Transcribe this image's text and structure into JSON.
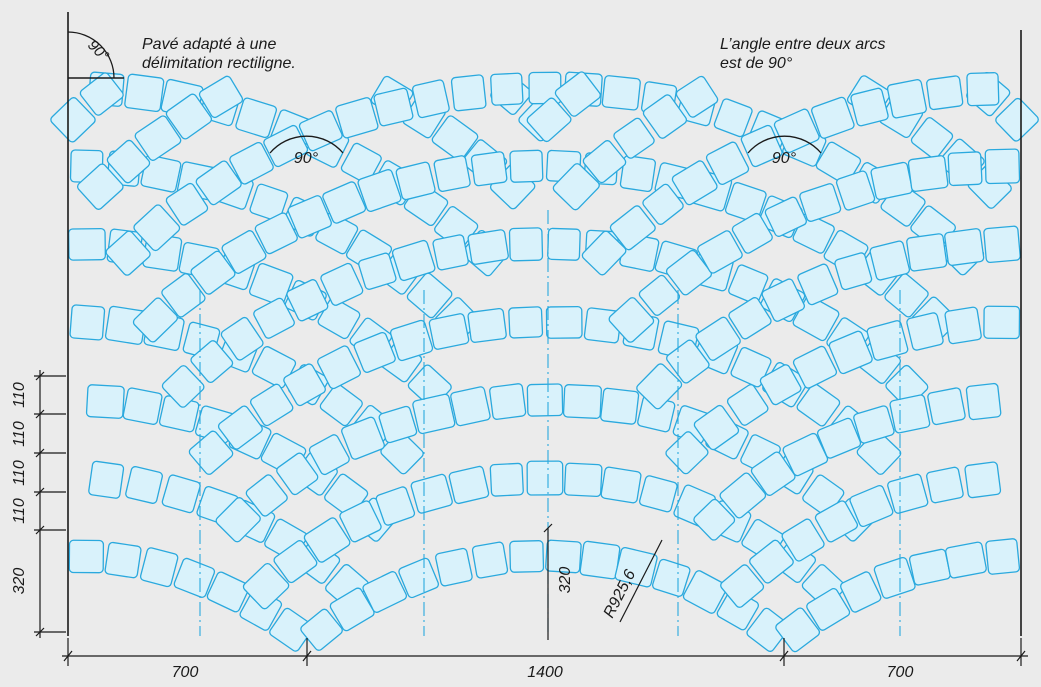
{
  "notes": {
    "left_line1": "Pavé adapté à une",
    "left_line2": "délimitation rectiligne.",
    "right_line1": "L’angle entre deux arcs",
    "right_line2": "est de 90°"
  },
  "angles": {
    "corner": "90°",
    "left_junction": "90°",
    "right_junction": "90°"
  },
  "dimensions": {
    "horizontal": [
      "700",
      "1400",
      "700"
    ],
    "vertical_rows": [
      "110",
      "110",
      "110",
      "110"
    ],
    "vertical_base": "320",
    "center_offset": "320",
    "radius": "R925,6"
  },
  "colors": {
    "background": "#ebebeb",
    "stone_fill": "#d9f2fb",
    "stone_stroke": "#2aa9de",
    "axis": "#2aa9de",
    "dimension": "#1a1a1a"
  }
}
